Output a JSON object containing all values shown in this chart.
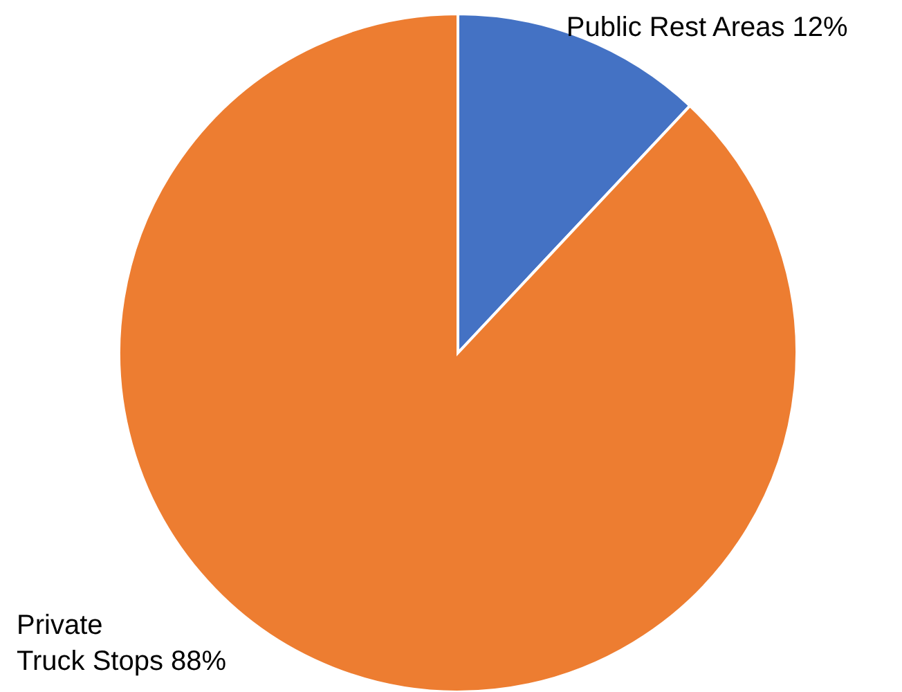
{
  "chart_data": {
    "type": "pie",
    "categories": [
      "Public Rest Areas",
      "Private Truck Stops"
    ],
    "values": [
      12,
      88
    ],
    "colors": [
      "#4472c4",
      "#ed7d31"
    ],
    "value_labels": [
      "12%",
      "88%"
    ],
    "legend": false
  }
}
